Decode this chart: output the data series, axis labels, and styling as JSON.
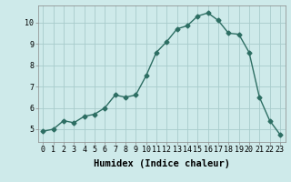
{
  "x": [
    0,
    1,
    2,
    3,
    4,
    5,
    6,
    7,
    8,
    9,
    10,
    11,
    12,
    13,
    14,
    15,
    16,
    17,
    18,
    19,
    20,
    21,
    22,
    23
  ],
  "y": [
    4.9,
    5.0,
    5.4,
    5.3,
    5.6,
    5.7,
    6.0,
    6.6,
    6.5,
    6.6,
    7.5,
    8.6,
    9.1,
    9.7,
    9.85,
    10.3,
    10.45,
    10.1,
    9.5,
    9.45,
    8.6,
    6.5,
    5.4,
    4.75
  ],
  "line_color": "#2d6e63",
  "marker": "D",
  "marker_size": 2.5,
  "bg_color": "#ceeaea",
  "grid_color": "#a8cccc",
  "xlabel": "Humidex (Indice chaleur)",
  "ylim": [
    4.4,
    10.8
  ],
  "yticks": [
    5,
    6,
    7,
    8,
    9,
    10
  ],
  "xticks": [
    0,
    1,
    2,
    3,
    4,
    5,
    6,
    7,
    8,
    9,
    10,
    11,
    12,
    13,
    14,
    15,
    16,
    17,
    18,
    19,
    20,
    21,
    22,
    23
  ],
  "xtick_labels": [
    "0",
    "1",
    "2",
    "3",
    "4",
    "5",
    "6",
    "7",
    "8",
    "9",
    "10",
    "11",
    "12",
    "13",
    "14",
    "15",
    "16",
    "17",
    "18",
    "19",
    "20",
    "21",
    "22",
    "23"
  ],
  "xlabel_fontsize": 7.5,
  "tick_fontsize": 6,
  "line_width": 1.0
}
